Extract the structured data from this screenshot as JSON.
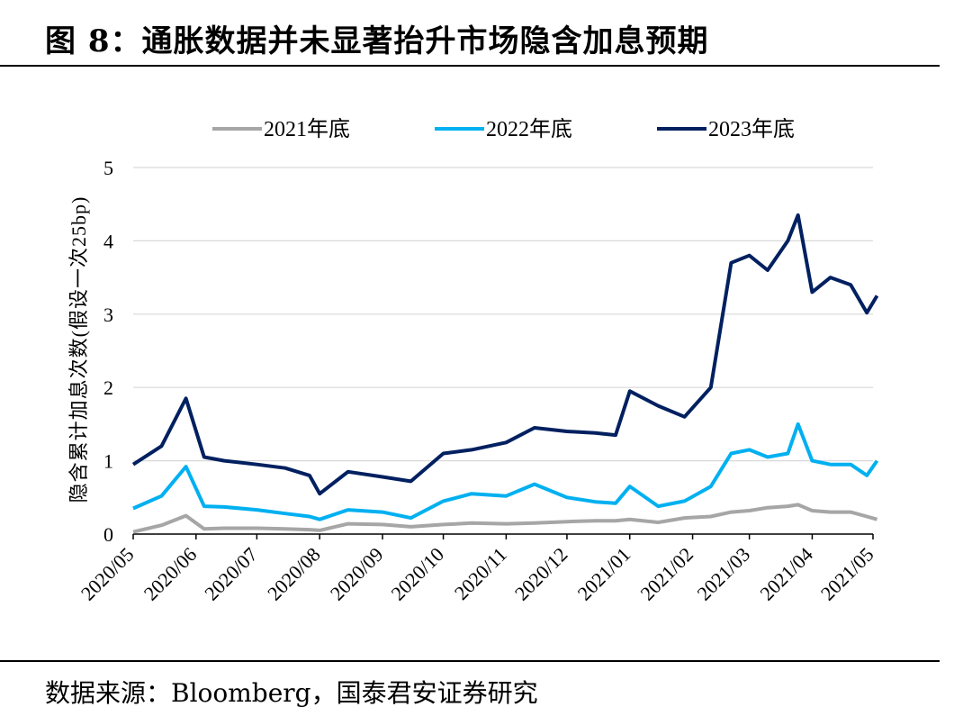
{
  "header": {
    "title": "图 8：通胀数据并未显著抬升市场隐含加息预期"
  },
  "footer": {
    "source": "数据来源：Bloomberg，国泰君安证券研究"
  },
  "chart_data": {
    "type": "line",
    "title": "图 8：通胀数据并未显著抬升市场隐含加息预期",
    "xlabel": "",
    "ylabel": "隐含累计加息次数(假设一次25bp)",
    "ylim": [
      0,
      5
    ],
    "yticks": [
      0,
      1,
      2,
      3,
      4,
      5
    ],
    "grid": true,
    "legend_position": "top",
    "x_ticks": [
      "2020/05",
      "2020/06",
      "2020/07",
      "2020/08",
      "2020/09",
      "2020/10",
      "2020/11",
      "2020/12",
      "2021/01",
      "2021/02",
      "2021/03",
      "2021/04",
      "2021/05"
    ],
    "x": [
      "2020/05/01",
      "2020/05/15",
      "2020/05/27",
      "2020/06/05",
      "2020/06/15",
      "2020/07/01",
      "2020/07/15",
      "2020/07/27",
      "2020/08/01",
      "2020/08/15",
      "2020/09/01",
      "2020/09/15",
      "2020/10/01",
      "2020/10/15",
      "2020/11/01",
      "2020/11/15",
      "2020/12/01",
      "2020/12/15",
      "2020/12/25",
      "2021/01/01",
      "2021/01/15",
      "2021/01/28",
      "2021/02/10",
      "2021/02/20",
      "2021/03/01",
      "2021/03/10",
      "2021/03/20",
      "2021/03/25",
      "2021/04/01",
      "2021/04/10",
      "2021/04/20",
      "2021/04/28",
      "2021/05/03"
    ],
    "series": [
      {
        "name": "2021年底",
        "color": "#a6a6a6",
        "values": [
          0.03,
          0.12,
          0.25,
          0.07,
          0.08,
          0.08,
          0.07,
          0.06,
          0.05,
          0.14,
          0.13,
          0.1,
          0.13,
          0.15,
          0.14,
          0.15,
          0.17,
          0.18,
          0.18,
          0.2,
          0.16,
          0.22,
          0.24,
          0.3,
          0.32,
          0.36,
          0.38,
          0.4,
          0.32,
          0.3,
          0.3,
          0.24,
          0.2
        ]
      },
      {
        "name": "2022年底",
        "color": "#00b0f0",
        "values": [
          0.35,
          0.52,
          0.92,
          0.38,
          0.37,
          0.33,
          0.28,
          0.24,
          0.2,
          0.33,
          0.3,
          0.22,
          0.45,
          0.55,
          0.52,
          0.68,
          0.5,
          0.44,
          0.42,
          0.65,
          0.38,
          0.45,
          0.65,
          1.1,
          1.15,
          1.05,
          1.1,
          1.5,
          1.0,
          0.95,
          0.95,
          0.8,
          1.0
        ]
      },
      {
        "name": "2023年底",
        "color": "#002060",
        "values": [
          0.95,
          1.2,
          1.85,
          1.05,
          1.0,
          0.95,
          0.9,
          0.8,
          0.55,
          0.85,
          0.78,
          0.72,
          1.1,
          1.15,
          1.25,
          1.45,
          1.4,
          1.38,
          1.35,
          1.95,
          1.75,
          1.6,
          2.0,
          3.7,
          3.8,
          3.6,
          4.0,
          4.35,
          3.3,
          3.5,
          3.4,
          3.02,
          3.25
        ]
      }
    ]
  }
}
